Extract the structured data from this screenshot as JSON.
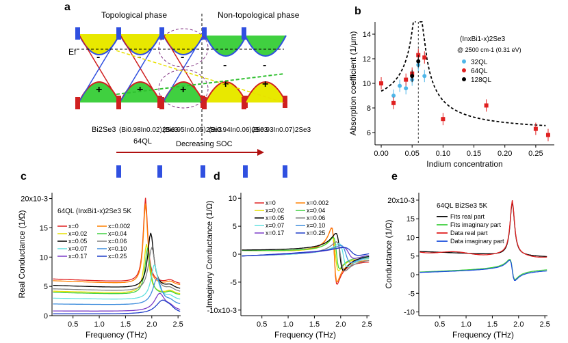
{
  "labels": {
    "a": "a",
    "b": "b",
    "c": "c",
    "d": "d",
    "e": "e"
  },
  "panel_a": {
    "topological": "Topological phase",
    "non_topological": "Non-topological phase",
    "ef": "Ef",
    "compounds": [
      "Bi2Se3",
      "(Bi0.98In0.02)2Se3",
      "(Bi0.95In0.05)2Se3",
      "(Bi0.94In0.06)2Se3",
      "(Bi0.93In0.07)2Se3"
    ],
    "thickness": "64QL",
    "arrow_label": "Decreasing SOC",
    "minus": "-",
    "plus": "+"
  },
  "chart_data": [
    {
      "panel": "b",
      "type": "scatter",
      "xlabel": "Indium concentration",
      "ylabel": "Absorption coefficient (1/μm)",
      "xlim": [
        -0.01,
        0.28
      ],
      "ylim": [
        5,
        15
      ],
      "xticks": [
        "0.00",
        "0.05",
        "0.10",
        "0.15",
        "0.20",
        "0.25"
      ],
      "yticks": [
        "6",
        "8",
        "10",
        "12",
        "14"
      ],
      "legend_title": "(InxBi1-x)2Se3",
      "legend_subtitle": "@ 2500 cm-1 (0.31 eV)",
      "series": [
        {
          "name": "32QL",
          "color": "#4fb6e8",
          "x": [
            0.02,
            0.03,
            0.04,
            0.05,
            0.06,
            0.07
          ],
          "y": [
            9.0,
            9.8,
            9.6,
            10.3,
            11.5,
            10.6
          ]
        },
        {
          "name": "64QL",
          "color": "#e02020",
          "x": [
            0.0,
            0.02,
            0.04,
            0.05,
            0.06,
            0.07,
            0.1,
            0.17,
            0.25,
            0.27
          ],
          "y": [
            10.0,
            8.4,
            10.3,
            10.8,
            12.3,
            12.1,
            7.1,
            8.2,
            6.3,
            5.8
          ]
        },
        {
          "name": "128QL",
          "color": "#000000",
          "x": [
            0.05,
            0.06
          ],
          "y": [
            10.6,
            11.8
          ]
        }
      ],
      "fit": {
        "peak_x": 0.06
      }
    },
    {
      "panel": "c",
      "type": "line",
      "title": "64QL (InxBi1-x)2Se3 5K",
      "xlabel": "Frequency (THz)",
      "ylabel": "Real Conductance (1/Ω)",
      "xlim": [
        0.1,
        2.55
      ],
      "ylim": [
        0,
        21
      ],
      "xticks": [
        "0.5",
        "1.0",
        "1.5",
        "2.0",
        "2.5"
      ],
      "yticks": [
        "0",
        "5",
        "10",
        "15",
        "20x10-3"
      ],
      "series": [
        {
          "name": "x=0",
          "color": "#e02020",
          "base": 6.3,
          "peak": 1.88,
          "amp": 14.5,
          "w": 0.05
        },
        {
          "name": "x=0.002",
          "color": "#ff8000",
          "base": 6.0,
          "peak": 1.88,
          "amp": 13.8,
          "w": 0.05
        },
        {
          "name": "x=0.02",
          "color": "#e6e000",
          "base": 4.2,
          "peak": 1.9,
          "amp": 8.5,
          "w": 0.06
        },
        {
          "name": "x=0.04",
          "color": "#40d040",
          "base": 4.0,
          "peak": 1.92,
          "amp": 8.0,
          "w": 0.06
        },
        {
          "name": "x=0.05",
          "color": "#000000",
          "base": 5.2,
          "peak": 1.98,
          "amp": 9.5,
          "w": 0.07
        },
        {
          "name": "x=0.06",
          "color": "#808080",
          "base": 4.6,
          "peak": 2.0,
          "amp": 7.5,
          "w": 0.08
        },
        {
          "name": "x=0.07",
          "color": "#60e0e0",
          "base": 3.0,
          "peak": 2.05,
          "amp": 6.0,
          "w": 0.08
        },
        {
          "name": "x=0.10",
          "color": "#3c8cdc",
          "base": 2.0,
          "peak": 2.1,
          "amp": 4.5,
          "w": 0.1
        },
        {
          "name": "x=0.17",
          "color": "#7a3cc8",
          "base": 0.8,
          "peak": 2.15,
          "amp": 3.0,
          "w": 0.12
        },
        {
          "name": "x=0.25",
          "color": "#1e3cc8",
          "base": 0.3,
          "peak": 2.2,
          "amp": 2.2,
          "w": 0.15
        }
      ]
    },
    {
      "panel": "d",
      "type": "line",
      "xlabel": "Frequency (THz)",
      "ylabel": "Imaginary Conductance (1/Ω)",
      "xlim": [
        0.1,
        2.55
      ],
      "ylim": [
        -11,
        11
      ],
      "xticks": [
        "0.5",
        "1.0",
        "1.5",
        "2.0",
        "2.5"
      ],
      "yticks": [
        "-10x10-3",
        "-5",
        "0",
        "5",
        "10"
      ],
      "series_names": [
        "x=0",
        "x=0.002",
        "x=0.02",
        "x=0.04",
        "x=0.05",
        "x=0.06",
        "x=0.07",
        "x=0.10",
        "x=0.17",
        "x=0.25"
      ]
    },
    {
      "panel": "e",
      "type": "line",
      "title": "64QL Bi2Se3 5K",
      "xlabel": "Frequency (THz)",
      "ylabel": "Conductance (1/Ω)",
      "xlim": [
        0.1,
        2.55
      ],
      "ylim": [
        -11,
        22
      ],
      "xticks": [
        "0.5",
        "1.0",
        "1.5",
        "2.0",
        "2.5"
      ],
      "yticks": [
        "-10",
        "-5",
        "0",
        "5",
        "10",
        "15",
        "20x10-3"
      ],
      "series": [
        {
          "name": "Fits real part",
          "color": "#000000"
        },
        {
          "name": "Fits imaginary part",
          "color": "#40d040"
        },
        {
          "name": "Data real part",
          "color": "#e02020"
        },
        {
          "name": "Data imaginary part",
          "color": "#1e50dc"
        }
      ]
    }
  ]
}
